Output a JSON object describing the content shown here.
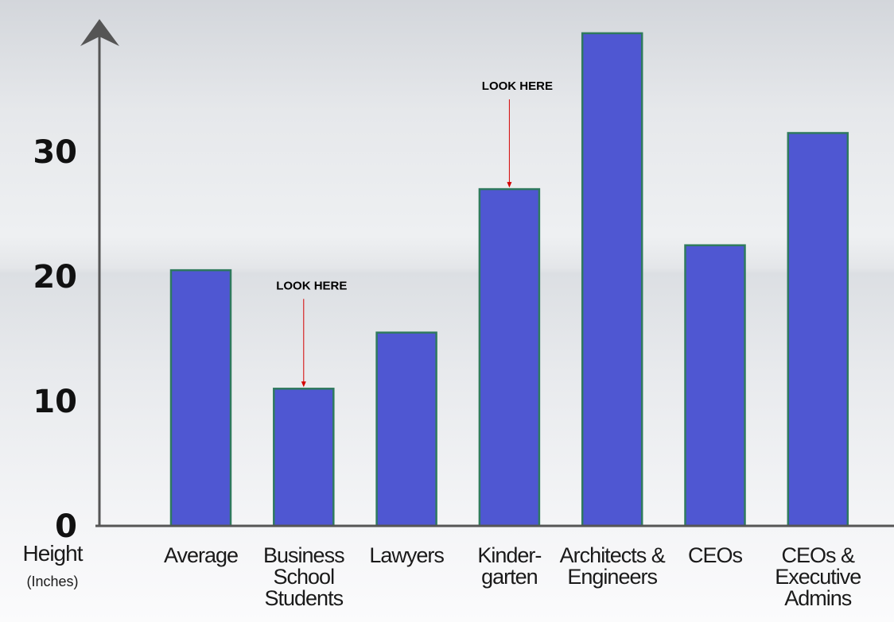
{
  "chart_data": {
    "type": "bar",
    "categories": [
      [
        "Average"
      ],
      [
        "Business",
        "School",
        "Students"
      ],
      [
        "Lawyers"
      ],
      [
        "Kinder-",
        "garten"
      ],
      [
        "Architects &",
        "Engineers"
      ],
      [
        "CEOs"
      ],
      [
        "CEOs &",
        "Executive",
        "Admins"
      ]
    ],
    "values": [
      20.5,
      11,
      15.5,
      27,
      39.5,
      22.5,
      31.5
    ],
    "ylim": [
      0,
      40
    ],
    "yticks": [
      "0",
      "10",
      "20",
      "30"
    ],
    "ylabel": "Height",
    "ylabel_unit": "(Inches)",
    "grid": false,
    "bar_color": "#4f57d2",
    "bar_edge_color": "#2f7a5e",
    "annotations": [
      {
        "text": "LOOK HERE",
        "category_index": 1
      },
      {
        "text": "LOOK HERE",
        "category_index": 3
      }
    ]
  }
}
